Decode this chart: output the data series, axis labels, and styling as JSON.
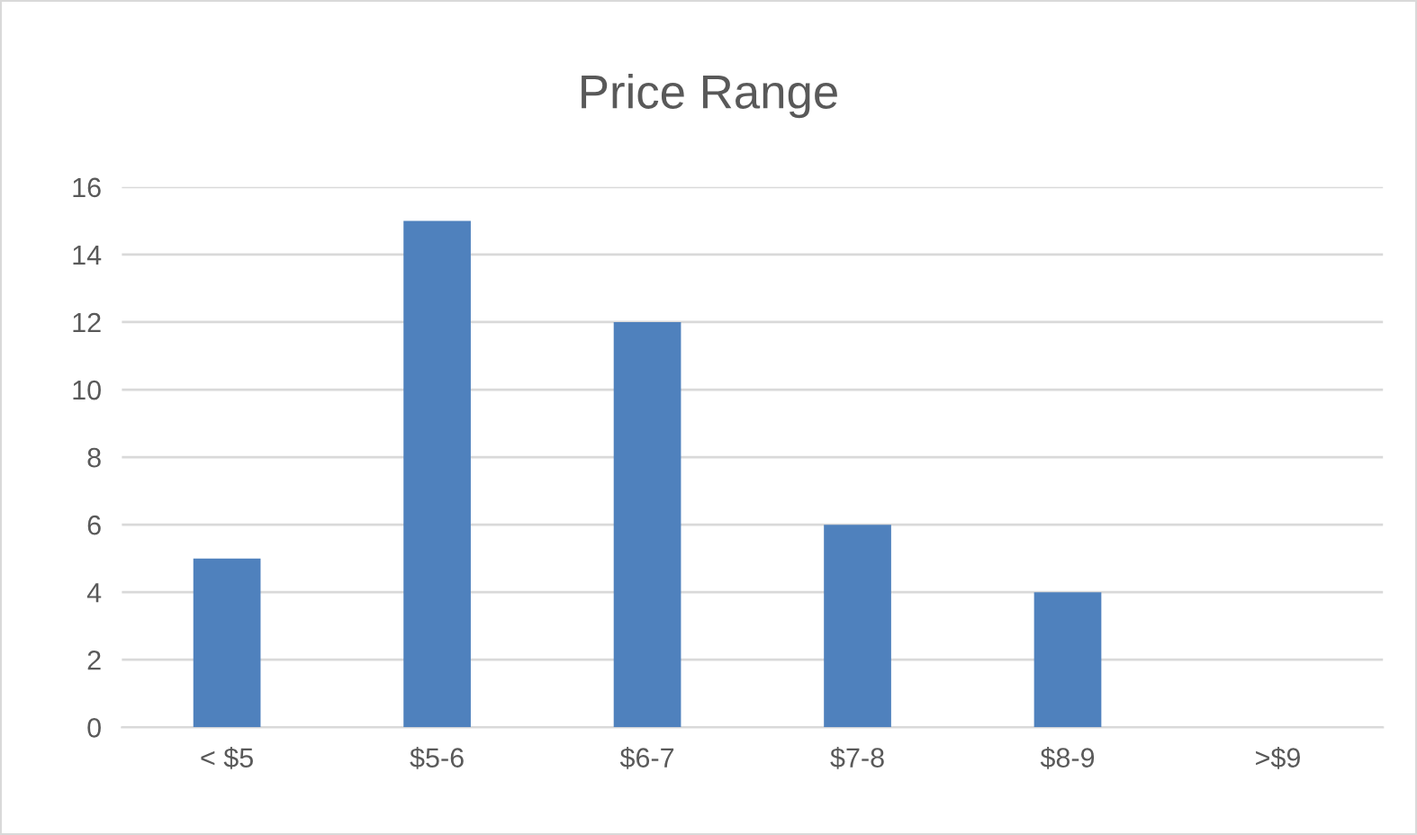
{
  "chart_data": {
    "type": "bar",
    "title": "Price Range",
    "categories": [
      "< $5",
      "$5-6",
      "$6-7",
      "$7-8",
      "$8-9",
      ">$9"
    ],
    "values": [
      5,
      15,
      12,
      6,
      4,
      0
    ],
    "color": "#4f81bd",
    "ylim": [
      0,
      16
    ],
    "yticks": [
      0,
      2,
      4,
      6,
      8,
      10,
      12,
      14,
      16
    ],
    "grid": "y",
    "legend": false
  }
}
